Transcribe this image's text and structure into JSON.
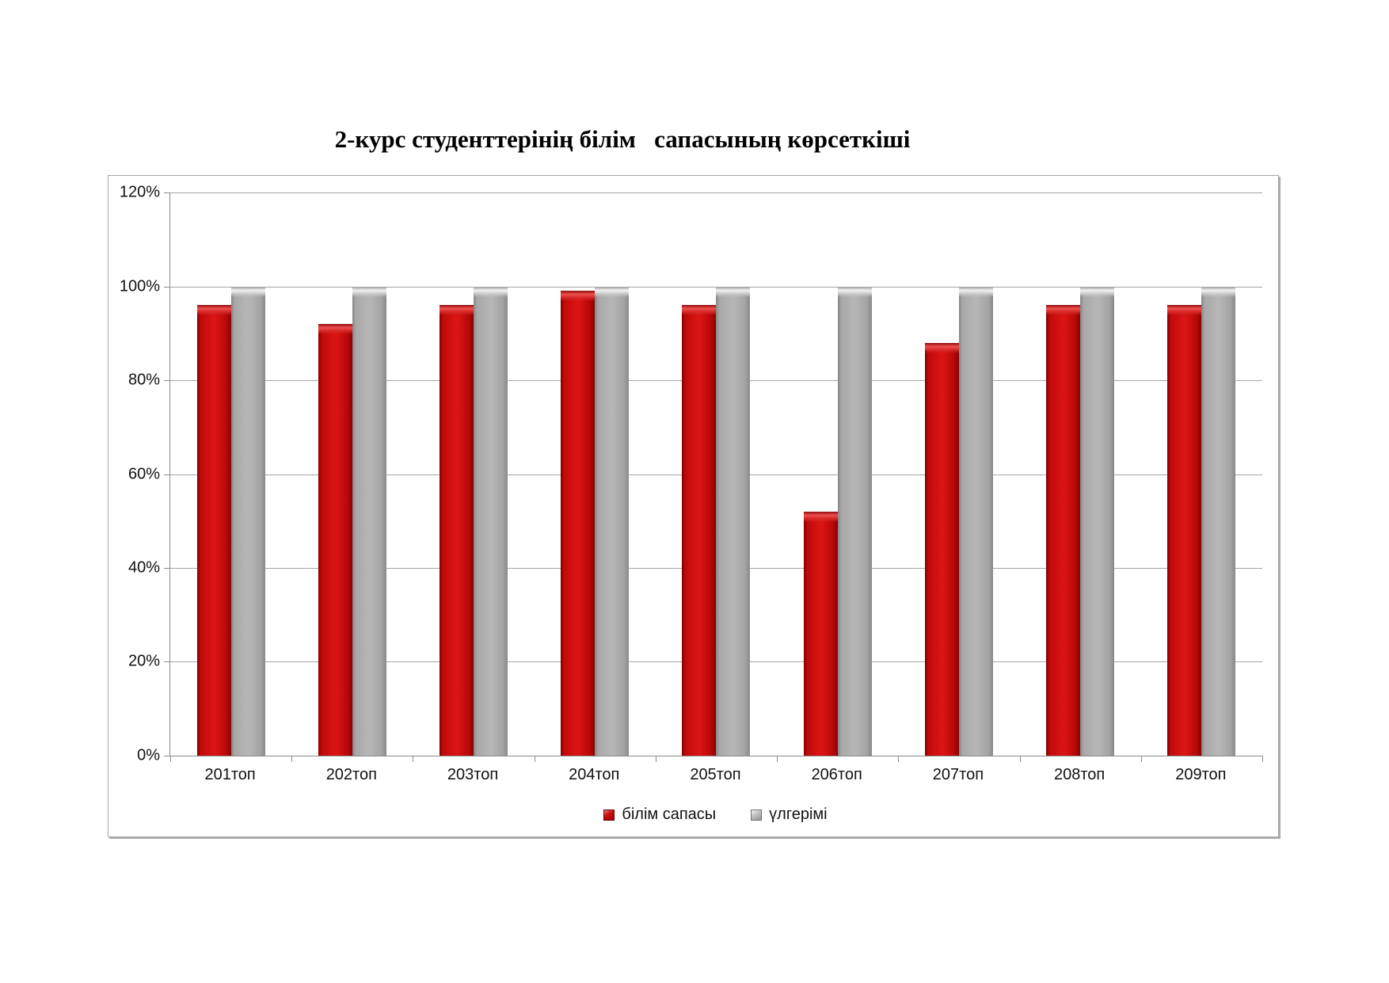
{
  "chart_data": {
    "type": "bar",
    "title": "2-курс студенттерінің білім   сапасының көрсеткіші",
    "categories": [
      "201топ",
      "202топ",
      "203топ",
      "204топ",
      "205топ",
      "206топ",
      "207топ",
      "208топ",
      "209топ"
    ],
    "series": [
      {
        "name": "білім сапасы",
        "color": "#c00000",
        "values": [
          96,
          92,
          96,
          99,
          96,
          52,
          88,
          96,
          96
        ]
      },
      {
        "name": "үлгерімі",
        "color": "#ababab",
        "values": [
          100,
          100,
          100,
          100,
          100,
          100,
          100,
          100,
          100
        ]
      }
    ],
    "xlabel": "",
    "ylabel": "",
    "ylim": [
      0,
      120
    ],
    "yticks": [
      {
        "label": "0%",
        "value": 0
      },
      {
        "label": "20%",
        "value": 20
      },
      {
        "label": "40%",
        "value": 40
      },
      {
        "label": "60%",
        "value": 60
      },
      {
        "label": "80%",
        "value": 80
      },
      {
        "label": "100%",
        "value": 100
      },
      {
        "label": "120%",
        "value": 120
      }
    ],
    "grid": true,
    "legend_position": "bottom"
  }
}
